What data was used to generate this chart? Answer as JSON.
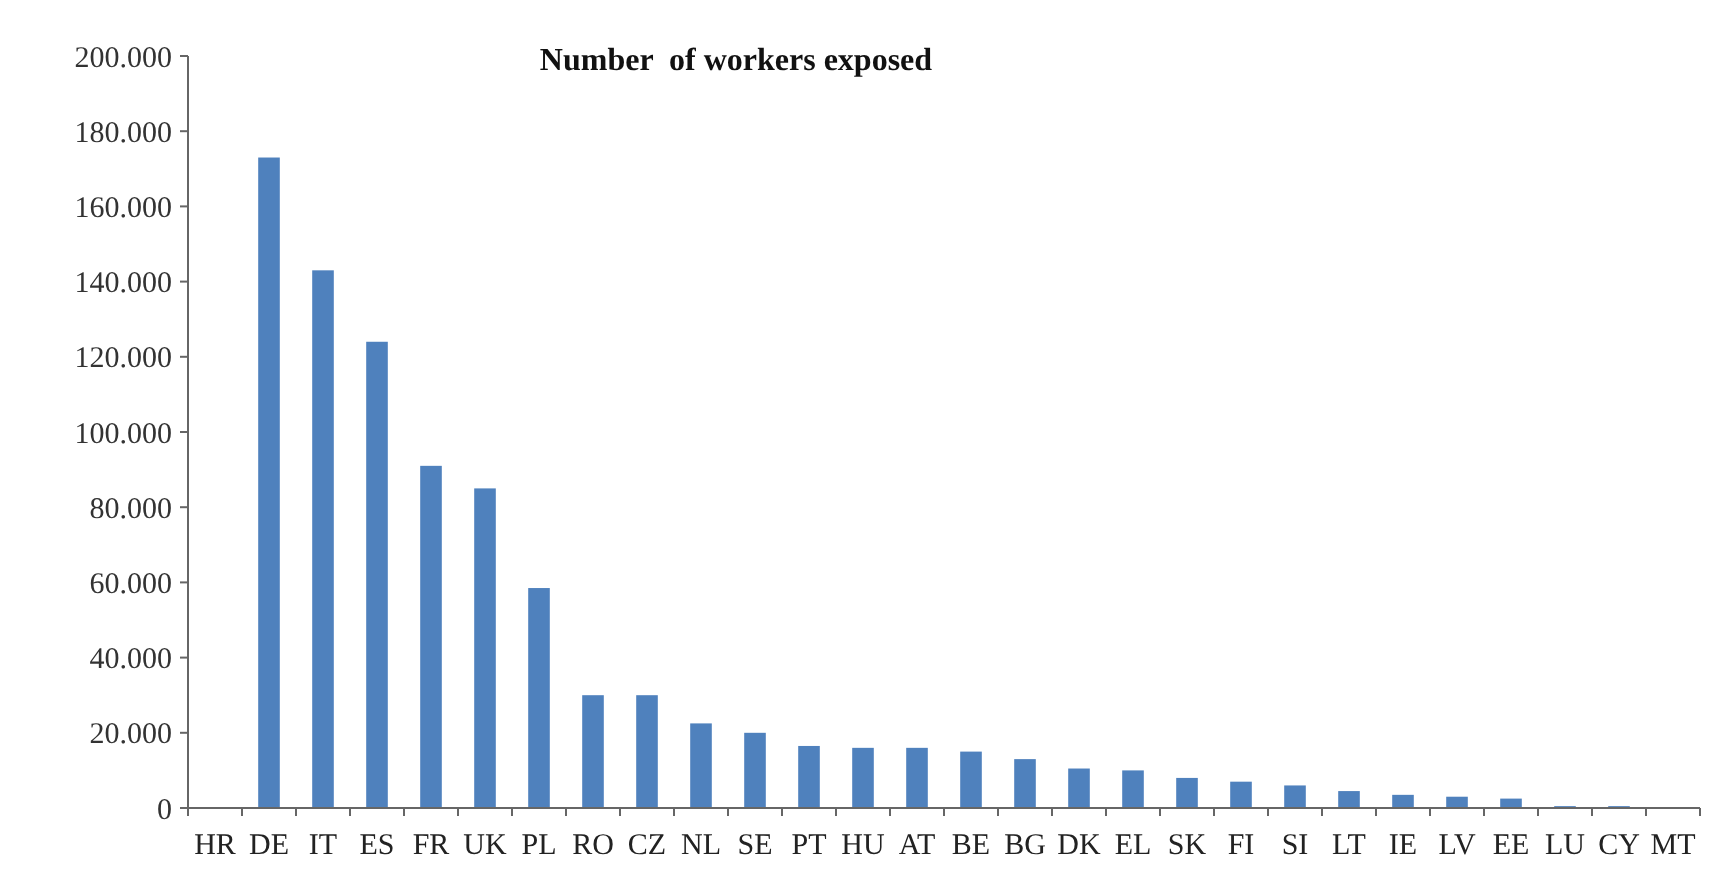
{
  "chart_data": {
    "type": "bar",
    "title": "Number  of workers exposed",
    "categories": [
      "HR",
      "DE",
      "IT",
      "ES",
      "FR",
      "UK",
      "PL",
      "RO",
      "CZ",
      "NL",
      "SE",
      "PT",
      "HU",
      "AT",
      "BE",
      "BG",
      "DK",
      "EL",
      "SK",
      "FI",
      "SI",
      "LT",
      "IE",
      "LV",
      "EE",
      "LU",
      "CY",
      "MT"
    ],
    "values": [
      0,
      173000,
      143000,
      124000,
      91000,
      85000,
      58500,
      30000,
      30000,
      22500,
      20000,
      16500,
      16000,
      16000,
      15000,
      13000,
      10500,
      10000,
      8000,
      7000,
      6000,
      4500,
      3500,
      3000,
      2500,
      500,
      500,
      0
    ],
    "color": "#4f81bd",
    "ylim": [
      0,
      200000
    ],
    "yticks": [
      0,
      {
        "value": 20000,
        "label": "20.000"
      },
      {
        "value": 40000,
        "label": "40.000"
      },
      {
        "value": 60000,
        "label": "60.000"
      },
      {
        "value": 80000,
        "label": "80.000"
      },
      {
        "value": 100000,
        "label": "100.000"
      },
      {
        "value": 120000,
        "label": "120.000"
      },
      {
        "value": 140000,
        "label": "140.000"
      },
      {
        "value": 160000,
        "label": "160.000"
      },
      {
        "value": 180000,
        "label": "180.000"
      },
      {
        "value": 200000,
        "label": "200.000"
      }
    ],
    "grid": false
  }
}
